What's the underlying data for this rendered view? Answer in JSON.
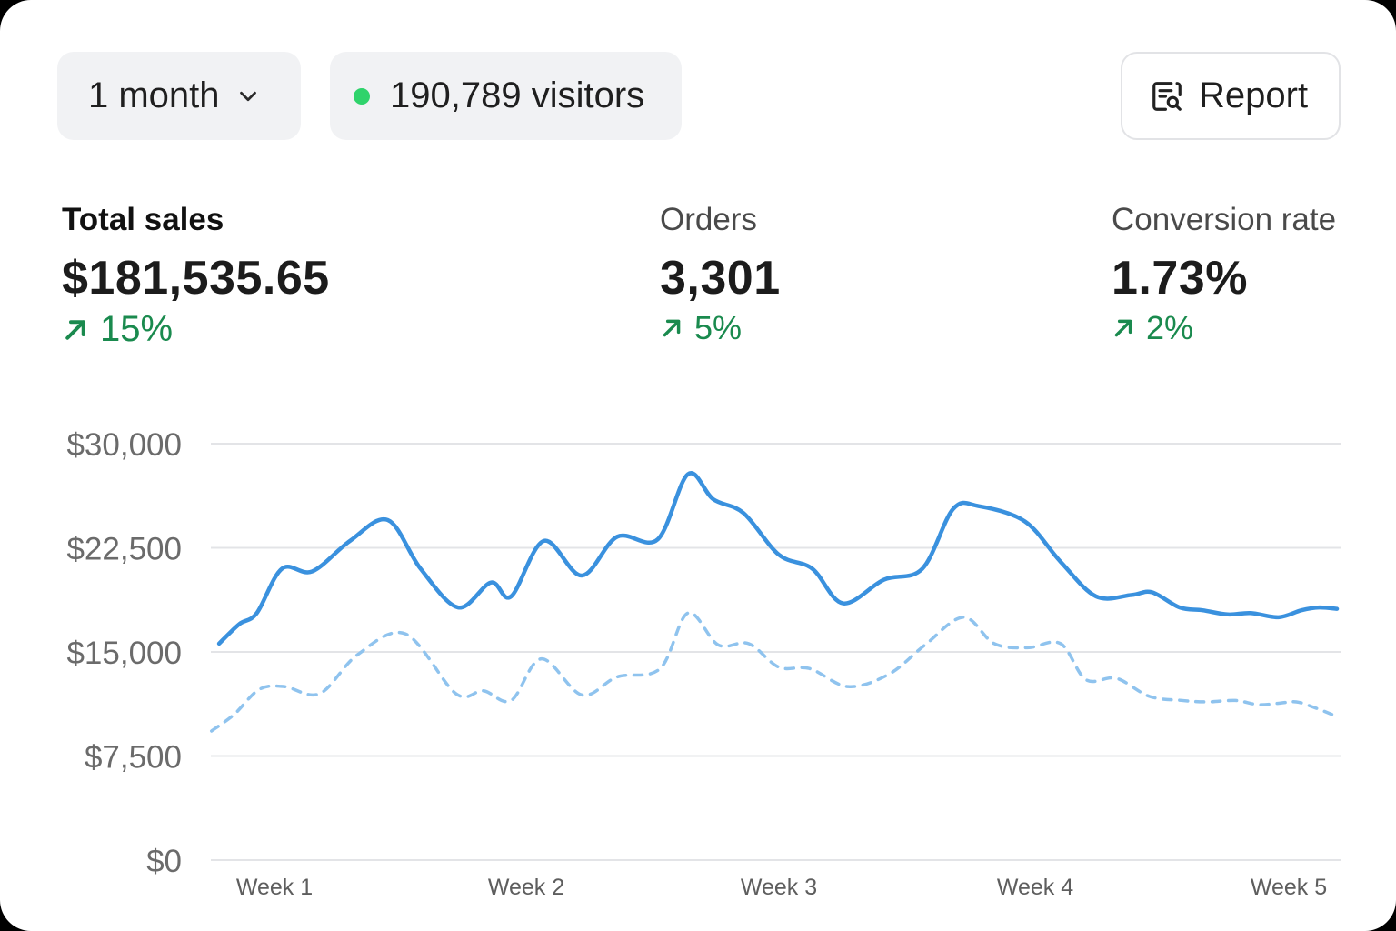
{
  "header": {
    "range": {
      "label": "1 month",
      "icon": "chevron-down-icon"
    },
    "visitors": {
      "label": "190,789 visitors",
      "status_color": "#2fd36b"
    },
    "report": {
      "label": "Report",
      "icon": "report-search-icon"
    }
  },
  "metrics": [
    {
      "label": "Total sales",
      "value": "$181,535.65",
      "delta": "15%"
    },
    {
      "label": "Orders",
      "value": "3,301",
      "delta": "5%"
    },
    {
      "label": "Conversion rate",
      "value": "1.73%",
      "delta": "2%"
    }
  ],
  "colors": {
    "accent": "#3a91de",
    "positive": "#1a8a4e",
    "grid": "#e3e4e7"
  },
  "chart_data": {
    "type": "line",
    "ylim": [
      0,
      30000
    ],
    "yticks": [
      0,
      7500,
      15000,
      22500,
      30000
    ],
    "ytick_labels": [
      "$0",
      "$7,500",
      "$15,000",
      "$22,500",
      "$30,000"
    ],
    "xlim": [
      0.75,
      5.2
    ],
    "xticks": [
      1,
      2,
      3,
      4,
      5
    ],
    "xtick_labels": [
      "Week 1",
      "Week 2",
      "Week 3",
      "Week 4",
      "Week 5"
    ],
    "grid": true,
    "series": [
      {
        "style": "solid",
        "x": [
          0.78,
          0.86,
          0.93,
          1.03,
          1.15,
          1.3,
          1.45,
          1.58,
          1.73,
          1.86,
          1.94,
          2.07,
          2.22,
          2.36,
          2.52,
          2.64,
          2.74,
          2.86,
          3.0,
          3.13,
          3.25,
          3.41,
          3.56,
          3.68,
          3.78,
          3.96,
          4.1,
          4.24,
          4.38,
          4.46,
          4.57,
          4.66,
          4.76,
          4.85,
          4.96,
          5.05,
          5.12,
          5.19
        ],
        "y": [
          15600,
          17000,
          17800,
          21000,
          20800,
          23000,
          24500,
          21000,
          18200,
          20000,
          19000,
          23000,
          20500,
          23300,
          23100,
          27800,
          26000,
          25000,
          22000,
          21000,
          18500,
          20200,
          21000,
          25300,
          25500,
          24400,
          21500,
          19000,
          19100,
          19300,
          18200,
          18000,
          17700,
          17800,
          17500,
          18000,
          18200,
          18100
        ]
      },
      {
        "style": "dashed",
        "x": [
          0.75,
          0.84,
          0.94,
          1.04,
          1.18,
          1.33,
          1.52,
          1.72,
          1.83,
          1.94,
          2.06,
          2.22,
          2.36,
          2.53,
          2.64,
          2.76,
          2.88,
          3.0,
          3.12,
          3.27,
          3.43,
          3.57,
          3.72,
          3.84,
          3.97,
          4.1,
          4.2,
          4.32,
          4.45,
          4.58,
          4.68,
          4.79,
          4.88,
          4.96,
          5.03,
          5.1,
          5.17
        ],
        "y": [
          9300,
          10500,
          12300,
          12500,
          12000,
          14800,
          16300,
          12000,
          12200,
          11500,
          14500,
          11900,
          13200,
          13800,
          17800,
          15500,
          15600,
          13900,
          13800,
          12500,
          13400,
          15500,
          17500,
          15600,
          15300,
          15600,
          13000,
          13100,
          11800,
          11500,
          11400,
          11500,
          11200,
          11300,
          11400,
          11000,
          10500
        ]
      }
    ]
  }
}
